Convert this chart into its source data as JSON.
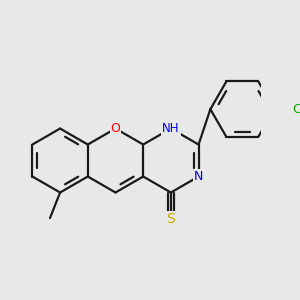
{
  "bg_color": "#e8e8e8",
  "bond_color": "#1a1a1a",
  "bond_width": 1.6,
  "atom_colors": {
    "O": "#ff0000",
    "N": "#0000ee",
    "S": "#ccaa00",
    "Cl": "#00aa00",
    "C": "#1a1a1a",
    "H": "#0000ee"
  },
  "font_size_atom": 9,
  "fig_width": 3.0,
  "fig_height": 3.0,
  "dpi": 100
}
